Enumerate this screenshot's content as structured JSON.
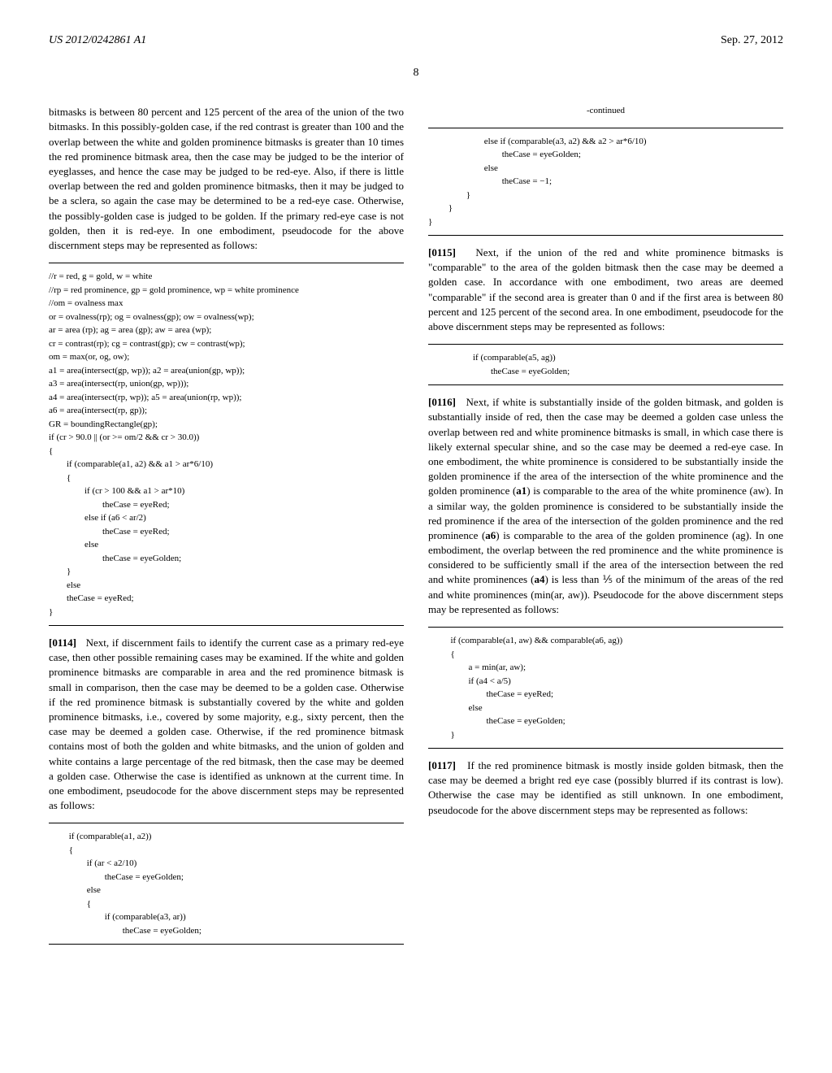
{
  "header": {
    "publication_number": "US 2012/0242861 A1",
    "date": "Sep. 27, 2012",
    "page_number": "8"
  },
  "column1": {
    "para1": "bitmasks is between 80 percent and 125 percent of the area of the union of the two bitmasks. In this possibly-golden case, if the red contrast is greater than 100 and the overlap between the white and golden prominence bitmasks is greater than 10 times the red prominence bitmask area, then the case may be judged to be the interior of eyeglasses, and hence the case may be judged to be red-eye. Also, if there is little overlap between the red and golden prominence bitmasks, then it may be judged to be a sclera, so again the case may be determined to be a red-eye case. Otherwise, the possibly-golden case is judged to be golden. If the primary red-eye case is not golden, then it is red-eye. In one embodiment, pseudocode for the above discernment steps may be represented as follows:",
    "code1": "//r = red, g = gold, w = white\n//rp = red prominence, gp = gold prominence, wp = white prominence\n//om = ovalness max\nor = ovalness(rp); og = ovalness(gp); ow = ovalness(wp);\nar = area (rp); ag = area (gp); aw = area (wp);\ncr = contrast(rp); cg = contrast(gp); cw = contrast(wp);\nom = max(or, og, ow);\na1 = area(intersect(gp, wp)); a2 = area(union(gp, wp));\na3 = area(intersect(rp, union(gp, wp)));\na4 = area(intersect(rp, wp)); a5 = area(union(rp, wp));\na6 = area(intersect(rp, gp));\nGR = boundingRectangle(gp);\nif (cr > 90.0 || (or >= om/2 && cr > 30.0))\n{\n        if (comparable(a1, a2) && a1 > ar*6/10)\n        {\n                if (cr > 100 && a1 > ar*10)\n                        theCase = eyeRed;\n                else if (a6 < ar/2)\n                        theCase = eyeRed;\n                else\n                        theCase = eyeGolden;\n        }\n        else\n        theCase = eyeRed;\n}",
    "para2_num": "[0114]",
    "para2": "Next, if discernment fails to identify the current case as a primary red-eye case, then other possible remaining cases may be examined. If the white and golden prominence bitmasks are comparable in area and the red prominence bitmask is small in comparison, then the case may be deemed to be a golden case. Otherwise if the red prominence bitmask is substantially covered by the white and golden prominence bitmasks, i.e., covered by some majority, e.g., sixty percent, then the case may be deemed a golden case. Otherwise, if the red prominence bitmask contains most of both the golden and white bitmasks, and the union of golden and white contains a large percentage of the red bitmask, then the case may be deemed a golden case. Otherwise the case is identified as unknown at the current time. In one embodiment, pseudocode for the above discernment steps may be represented as follows:",
    "code2": "         if (comparable(a1, a2))\n         {\n                 if (ar < a2/10)\n                         theCase = eyeGolden;\n                 else\n                 {\n                         if (comparable(a3, ar))\n                                 theCase = eyeGolden;"
  },
  "column2": {
    "continued_label": "-continued",
    "code3": "                         else if (comparable(a3, a2) && a2 > ar*6/10)\n                                 theCase = eyeGolden;\n                         else\n                                 theCase = −1;\n                 }\n         }\n}",
    "para3_num": "[0115]",
    "para3": "Next, if the union of the red and white prominence bitmasks is \"comparable\" to the area of the golden bitmask then the case may be deemed a golden case. In accordance with one embodiment, two areas are deemed \"comparable\" if the second area is greater than 0 and if the first area is between 80 percent and 125 percent of the second area. In one embodiment, pseudocode for the above discernment steps may be represented as follows:",
    "code4": "                    if (comparable(a5, ag))\n                            theCase = eyeGolden;",
    "para4_num": "[0116]",
    "para4_part1": "Next, if white is substantially inside of the golden bitmask, and golden is substantially inside of red, then the case may be deemed a golden case unless the overlap between red and white prominence bitmasks is small, in which case there is likely external specular shine, and so the case may be deemed a red-eye case. In one embodiment, the white prominence is considered to be substantially inside the golden prominence if the area of the intersection of the white prominence and the golden prominence (",
    "para4_a1": "a1",
    "para4_part2": ") is comparable to the area of the white prominence (aw). In a similar way, the golden prominence is considered to be substantially inside the red prominence if the area of the intersection of the golden prominence and the red prominence (",
    "para4_a6": "a6",
    "para4_part3": ") is comparable to the area of the golden prominence (ag). In one embodiment, the overlap between the red prominence and the white prominence is considered to be sufficiently small if the area of the intersection between the red and white prominences (",
    "para4_a4": "a4",
    "para4_part4": ") is less than ⅕ of the minimum of the areas of the red and white prominences (min(ar, aw)). Pseudocode for the above discernment steps may be represented as follows:",
    "code5": "          if (comparable(a1, aw) && comparable(a6, ag))\n          {\n                  a = min(ar, aw);\n                  if (a4 < a/5)\n                          theCase = eyeRed;\n                  else\n                          theCase = eyeGolden;\n          }",
    "para5_num": "[0117]",
    "para5": "If the red prominence bitmask is mostly inside golden bitmask, then the case may be deemed a bright red eye case (possibly blurred if its contrast is low). Otherwise the case may be identified as still unknown. In one embodiment, pseudocode for the above discernment steps may be represented as follows:"
  }
}
